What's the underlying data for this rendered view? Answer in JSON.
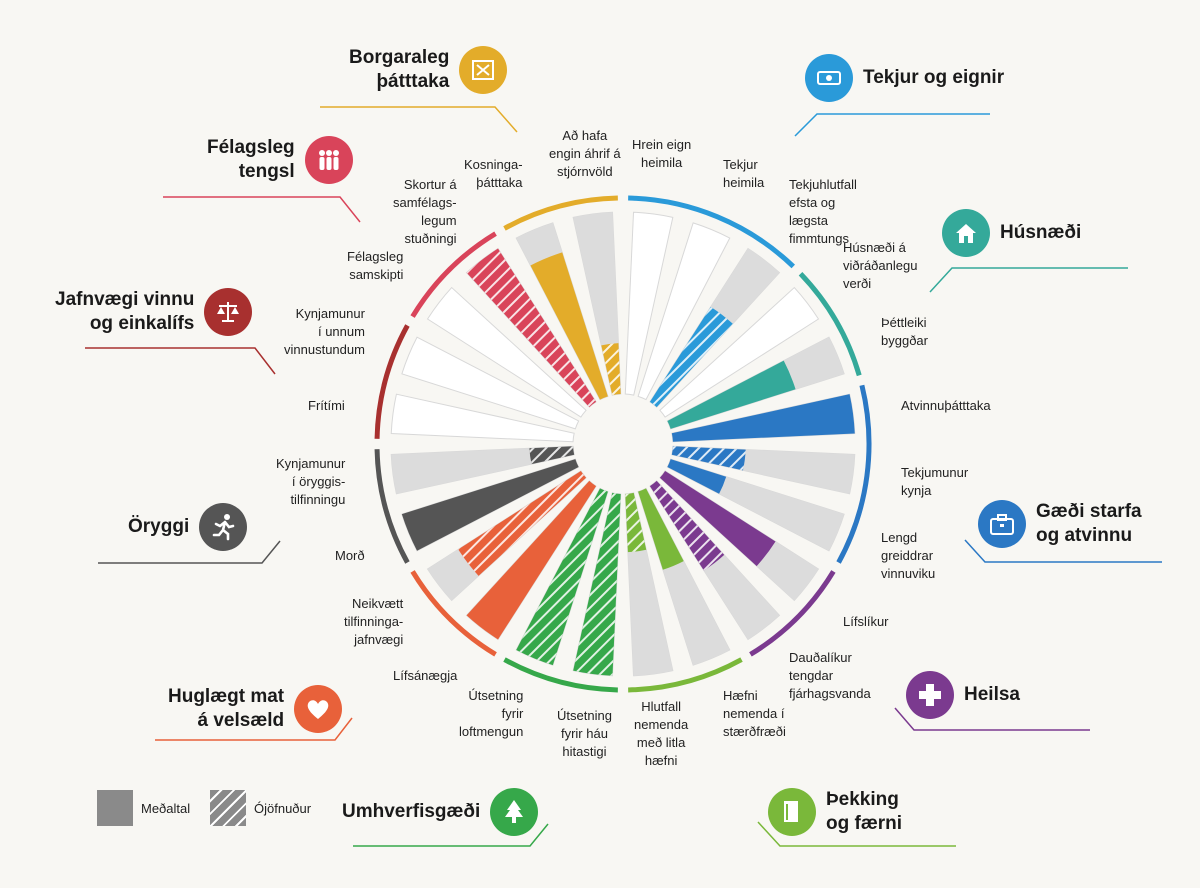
{
  "chart_data": {
    "type": "radial-bar",
    "legend": [
      {
        "key": "average",
        "label": "Meðaltal"
      },
      {
        "key": "inequality",
        "label": "Ójöfnuður"
      }
    ],
    "domains": [
      {
        "key": "income",
        "label": "Tekjur og eignir",
        "color": "#2a9ad9",
        "icon": "money-icon"
      },
      {
        "key": "housing",
        "label": "Húsnæði",
        "color": "#34a99a",
        "icon": "house-icon"
      },
      {
        "key": "jobs",
        "label": "Gæði starfa\nog atvinnu",
        "color": "#2b78c4",
        "icon": "briefcase-icon"
      },
      {
        "key": "health",
        "label": "Heilsa",
        "color": "#7b3a8f",
        "icon": "medical-cross-icon"
      },
      {
        "key": "knowledge",
        "label": "Þekking\nog færni",
        "color": "#7ab83a",
        "icon": "book-icon"
      },
      {
        "key": "environment",
        "label": "Umhverfisgæði",
        "color": "#36a84a",
        "icon": "tree-icon"
      },
      {
        "key": "wellbeing",
        "label": "Huglægt mat\ná velsæld",
        "color": "#e8613a",
        "icon": "heart-icon"
      },
      {
        "key": "safety",
        "label": "Öryggi",
        "color": "#555555",
        "icon": "running-person-icon"
      },
      {
        "key": "worklife",
        "label": "Jafnvægi vinnu\nog einkalífs",
        "color": "#a8302f",
        "icon": "scales-icon"
      },
      {
        "key": "social",
        "label": "Félagsleg\ntengsl",
        "color": "#d9445a",
        "icon": "people-icon"
      },
      {
        "key": "civic",
        "label": "Borgaraleg\nþátttaka",
        "color": "#e3ac2a",
        "icon": "ballot-icon"
      }
    ],
    "indicators": [
      {
        "label": "Hrein eign\nheimila",
        "domain": "income",
        "value": null,
        "type": "average"
      },
      {
        "label": "Tekjur\nheimila",
        "domain": "income",
        "value": null,
        "type": "average"
      },
      {
        "label": "Tekjuhlutfall\nefsta og\nlægsta\nfimmtungs",
        "domain": "income",
        "value": 0.62,
        "type": "inequality"
      },
      {
        "label": "Húsnæði á\nviðráðanlegu\nverði",
        "domain": "housing",
        "value": null,
        "type": "average"
      },
      {
        "label": "Þéttleiki\nbyggðar",
        "domain": "housing",
        "value": 0.72,
        "type": "average"
      },
      {
        "label": "Atvinnuþátttaka",
        "domain": "jobs",
        "value": 1.0,
        "type": "average"
      },
      {
        "label": "Tekjumunur\nkynja",
        "domain": "jobs",
        "value": 0.4,
        "type": "inequality"
      },
      {
        "label": "Lengd\ngreiddrar\nvinnuviku",
        "domain": "jobs",
        "value": 0.32,
        "type": "average"
      },
      {
        "label": "Lífslíkur",
        "domain": "health",
        "value": 0.72,
        "type": "average"
      },
      {
        "label": "Dauðalíkur\ntengdar\nfjárhagsvanda",
        "domain": "health",
        "value": 0.55,
        "type": "inequality"
      },
      {
        "label": "Hæfni\nnemenda í\nstærðfræði",
        "domain": "knowledge",
        "value": 0.45,
        "type": "average"
      },
      {
        "label": "Hlutfall\nnemenda\nmeð litla\nhæfni",
        "domain": "knowledge",
        "value": 0.32,
        "type": "inequality"
      },
      {
        "label": "Útsetning\nfyrir háu\nhitastigi",
        "domain": "environment",
        "value": 1.0,
        "type": "inequality"
      },
      {
        "label": "Útsetning\nfyrir\nloftmengun",
        "domain": "environment",
        "value": 1.0,
        "type": "inequality"
      },
      {
        "label": "Lífsánægja",
        "domain": "wellbeing",
        "value": 1.0,
        "type": "average"
      },
      {
        "label": "Neikvætt\ntilfinninga-\njafnvægi",
        "domain": "wellbeing",
        "value": 0.8,
        "type": "inequality"
      },
      {
        "label": "Morð",
        "domain": "safety",
        "value": 1.0,
        "type": "average"
      },
      {
        "label": "Kynjamunur\ní öryggis-\ntilfinningu",
        "domain": "safety",
        "value": 0.24,
        "type": "inequality"
      },
      {
        "label": "Frítími",
        "domain": "worklife",
        "value": null,
        "type": "average"
      },
      {
        "label": "Kynjamunur\ní unnum\nvinnustundum",
        "domain": "worklife",
        "value": null,
        "type": "average"
      },
      {
        "label": "Félagsleg\nsamskipti",
        "domain": "social",
        "value": null,
        "type": "average"
      },
      {
        "label": "Skortur á\nsamfélags-\nlegum\nstuðningi",
        "domain": "social",
        "value": 1.0,
        "type": "inequality"
      },
      {
        "label": "Kosninga-\nþátttaka",
        "domain": "civic",
        "value": 0.83,
        "type": "average"
      },
      {
        "label": "Að hafa\nengin áhrif á\nstjórnvöld",
        "domain": "civic",
        "value": 0.28,
        "type": "inequality"
      }
    ]
  }
}
